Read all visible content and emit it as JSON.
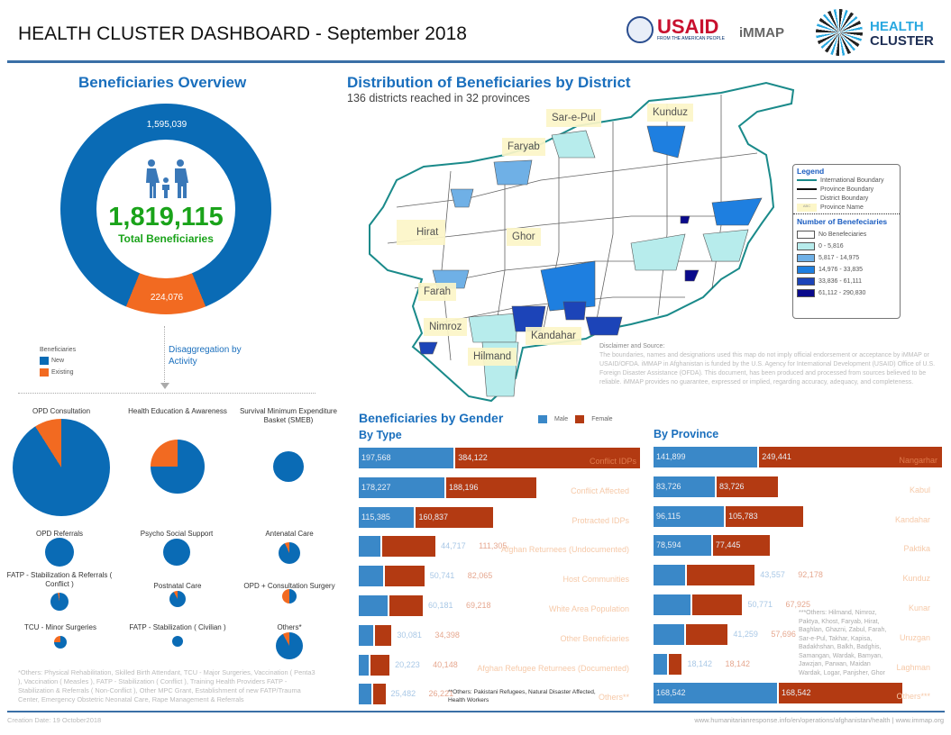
{
  "header": {
    "title": "HEALTH CLUSTER DASHBOARD - September 2018",
    "logos": {
      "usaid": "USAID",
      "usaid_tagline": "FROM THE AMERICAN PEOPLE",
      "immap": "iMMAP",
      "health_cluster_line1": "HEALTH",
      "health_cluster_line2": "CLUSTER"
    }
  },
  "overview": {
    "title": "Beneficiaries Overview",
    "new": 1595039,
    "new_label": "1,595,039",
    "existing": 224076,
    "existing_label": "224,076",
    "total": "1,819,115",
    "total_label": "Total Beneficiaries",
    "legend_title": "Beneficiaries",
    "legend_new": "New",
    "legend_existing": "Existing",
    "disaggregation": "Disaggregation by Activity",
    "colors": {
      "new": "#0a6bb5",
      "existing": "#f26a21"
    }
  },
  "activities": [
    {
      "label": "OPD Consultation",
      "existing_fraction": 0.09
    },
    {
      "label": "Health Education & Awareness",
      "existing_fraction": 0.25
    },
    {
      "label": "Survival Minimum Expenditure Basket (SMEB)",
      "existing_fraction": 0
    },
    {
      "label": "OPD Referrals",
      "existing_fraction": 0
    },
    {
      "label": "Psycho Social Support",
      "existing_fraction": 0
    },
    {
      "label": "Antenatal Care",
      "existing_fraction": 0.07
    },
    {
      "label": "FATP - Stabilization & Referrals ( Conflict )",
      "existing_fraction": 0.03
    },
    {
      "label": "Postnatal Care",
      "existing_fraction": 0.08
    },
    {
      "label": "OPD + Consultation Surgery",
      "existing_fraction": 0.5
    },
    {
      "label": "TCU - Minor Surgeries",
      "existing_fraction": 0.25
    },
    {
      "label": "FATP - Stabilization ( Civilian )",
      "existing_fraction": 0
    },
    {
      "label": "Others*",
      "existing_fraction": 0.08
    }
  ],
  "activities_note": "*Others: Physical Rehabilitation, Skilled Birth Attendant, TCU - Major Surgeries, Vaccination ( Penta3 ), Vaccination ( Measles ), FATP - Stabilization ( Conflict ), Training Health Providers FATP - Stabilization & Referrals ( Non-Conflict ), Other MPC Grant, Establishment of new FATP/Trauma Center, Emergency Obstetric Neonatal Care, Rape Management & Referrals",
  "map": {
    "title": "Distribution of Beneficiaries by District",
    "subtitle": "136 districts reached in 32 provinces",
    "provinces": [
      "Kunduz",
      "Sar-e-Pul",
      "Faryab",
      "Hirat",
      "Ghor",
      "Farah",
      "Nimroz",
      "Hilmand",
      "Kandahar"
    ],
    "legend": {
      "title": "Legend",
      "items": [
        "International Boundary",
        "Province Boundary",
        "District Boundary",
        "Province Name"
      ],
      "abc": "ABC",
      "scale_title": "Number of Benefeciaries",
      "classes": [
        {
          "label": "No Benefeciaries",
          "color": "#ffffff"
        },
        {
          "label": "0 - 5,816",
          "color": "#b7ecec"
        },
        {
          "label": "5,817 - 14,975",
          "color": "#6fb0e6"
        },
        {
          "label": "14,976 - 33,835",
          "color": "#1e7fe0"
        },
        {
          "label": "33,836 - 61,111",
          "color": "#1c44b8"
        },
        {
          "label": "61,112 - 290,830",
          "color": "#0a0a8c"
        }
      ]
    },
    "disclaimer_title": "Disclaimer and Source:",
    "disclaimer": "The boundaries, names and designations used this map do not imply official endorsement or acceptance by iMMAP or USAID/OFDA. iMMAP in Afghanistan is funded by the U.S. Agency for International Development (USAID) Office of U.S. Foreign Disaster Assistance (OFDA). This document, has been produced and processed from sources believed to be reliable. iMMAP provides no guarantee, expressed or implied, regarding accuracy, adequacy, and completeness."
  },
  "gender": {
    "title": "Beneficiaries by Gender",
    "male_label": "Male",
    "female_label": "Female",
    "colors": {
      "male": "#3a88c8",
      "female": "#b33a12"
    },
    "by_type": {
      "title": "By Type",
      "rows": [
        {
          "label": "Conflict IDPs",
          "male": 197568,
          "female": 384122,
          "male_text": "197,568",
          "female_text": "384,122"
        },
        {
          "label": "Conflict Affected",
          "male": 178227,
          "female": 188196,
          "male_text": "178,227",
          "female_text": "188,196"
        },
        {
          "label": "Protracted IDPs",
          "male": 115385,
          "female": 160837,
          "male_text": "115,385",
          "female_text": "160,837"
        },
        {
          "label": "Afghan Returnees (Undocumented)",
          "male": 44717,
          "female": 111305,
          "male_text": "44,717",
          "female_text": "111,305"
        },
        {
          "label": "Host Communities",
          "male": 50741,
          "female": 82065,
          "male_text": "50,741",
          "female_text": "82,065"
        },
        {
          "label": "White Area Population",
          "male": 60181,
          "female": 69218,
          "male_text": "60,181",
          "female_text": "69,218"
        },
        {
          "label": "Other Beneficiaries",
          "male": 30081,
          "female": 34398,
          "male_text": "30,081",
          "female_text": "34,398"
        },
        {
          "label": "Afghan Refugee Returnees (Documented)",
          "male": 20223,
          "female": 40148,
          "male_text": "20,223",
          "female_text": "40,148"
        },
        {
          "label": "Others**",
          "male": 25482,
          "female": 26221,
          "male_text": "25,482",
          "female_text": "26,221"
        }
      ],
      "note": "**Others: Pakistani Refugees, Natural Disaster Affected, Health Workers"
    },
    "by_province": {
      "title": "By Province",
      "rows": [
        {
          "label": "Nangarhar",
          "male": 141899,
          "female": 249441,
          "male_text": "141,899",
          "female_text": "249,441"
        },
        {
          "label": "Kabul",
          "male": 83726,
          "female": 83726,
          "male_text": "83,726",
          "female_text": "83,726"
        },
        {
          "label": "Kandahar",
          "male": 96115,
          "female": 105783,
          "male_text": "96,115",
          "female_text": "105,783"
        },
        {
          "label": "Paktika",
          "male": 78594,
          "female": 77445,
          "male_text": "78,594",
          "female_text": "77,445"
        },
        {
          "label": "Kunduz",
          "male": 43557,
          "female": 92178,
          "male_text": "43,557",
          "female_text": "92,178"
        },
        {
          "label": "Kunar",
          "male": 50771,
          "female": 67925,
          "male_text": "50,771",
          "female_text": "67,925"
        },
        {
          "label": "Uruzgan",
          "male": 41259,
          "female": 57696,
          "male_text": "41,259",
          "female_text": "57,696"
        },
        {
          "label": "Laghman",
          "male": 18142,
          "female": 18142,
          "male_text": "18,142",
          "female_text": "18,142"
        },
        {
          "label": "Others***",
          "male": 168542,
          "female": 168542,
          "male_text": "168,542",
          "female_text": "168,542"
        }
      ],
      "note": "***Others: Hilmand, Nimroz, Paktya, Khost, Faryab, Hirat, Baghlan, Ghazni, Zabul, Farah, Sar-e-Pul, Takhar, Kapisa, Badakhshan, Balkh, Badghis, Samangan, Wardak, Bamyan, Jawzjan, Parwan, Maidan Wardak, Logar, Panjsher, Ghor"
    }
  },
  "footer": {
    "created": "Creation Date: 19 October2018",
    "url": "www.humanitarianresponse.info/en/operations/afghanistan/health | www.immap.org"
  }
}
